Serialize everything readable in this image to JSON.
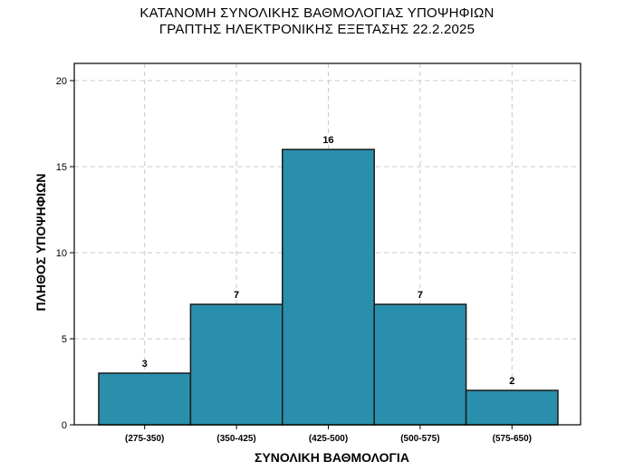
{
  "chart_data": {
    "type": "bar",
    "title": "ΚΑΤΑΝΟΜΗ ΣΥΝΟΛΙΚΗΣ ΒΑΘΜΟΛΟΓΙΑΣ ΥΠΟΨΗΦΙΩΝ",
    "subtitle": "ΓΡΑΠΤΗΣ ΗΛΕΚΤΡΟΝΙΚΗΣ ΕΞΕΤΑΣΗΣ 22.2.2025",
    "xlabel": "ΣΥΝΟΛΙΚΗ ΒΑΘΜΟΛΟΓΙΑ",
    "ylabel": "ΠΛΗΘΟΣ ΥΠΟΨΗΦΙΩΝ",
    "categories": [
      "(275-350)",
      "(350-425)",
      "(425-500)",
      "(500-575)",
      "(575-650)"
    ],
    "values": [
      3,
      7,
      16,
      7,
      2
    ],
    "data_labels": [
      "3",
      "7",
      "16",
      "7",
      "2"
    ],
    "ylim": [
      0,
      21
    ],
    "yticks": [
      0,
      5,
      10,
      15,
      20
    ],
    "ytick_labels": [
      "0",
      "5",
      "10",
      "15",
      "20"
    ],
    "grid": true,
    "grid_style": "dashed",
    "bar_color": "#2a8fad",
    "bar_edge_color": "#1a1a1a",
    "plot_background": "#ffffff",
    "gap_between_bars": false
  }
}
